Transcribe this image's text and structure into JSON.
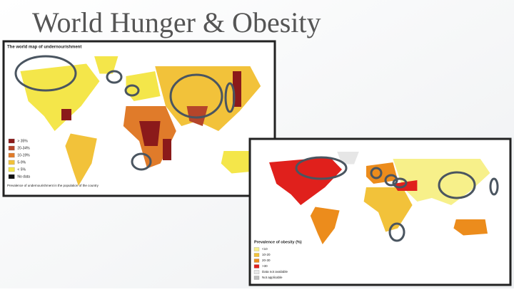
{
  "title": "World Hunger & Obesity",
  "hunger_map": {
    "title": "The world map of undernourishment",
    "legend": [
      {
        "label": "> 35%",
        "color": "#8b1a1a"
      },
      {
        "label": "20-34%",
        "color": "#b5452a"
      },
      {
        "label": "10-19%",
        "color": "#e07b2a"
      },
      {
        "label": "5-9%",
        "color": "#f2c23a"
      },
      {
        "label": "< 5%",
        "color": "#f4e64a"
      },
      {
        "label": "No data",
        "color": "#111111"
      }
    ],
    "note": "Prevalence of undernourishment in the population of the country"
  },
  "obesity_map": {
    "title": "Prevalence of obesity (%)",
    "legend": [
      {
        "label": "<10",
        "color": "#f7f08a"
      },
      {
        "label": "10-20",
        "color": "#f2c23a"
      },
      {
        "label": "20-30",
        "color": "#ec8c1c"
      },
      {
        "label": ">30",
        "color": "#e0201c"
      },
      {
        "label": "Data not available",
        "color": "#e6e6e6"
      },
      {
        "label": "Not applicable",
        "color": "#bdbdbd"
      }
    ]
  }
}
